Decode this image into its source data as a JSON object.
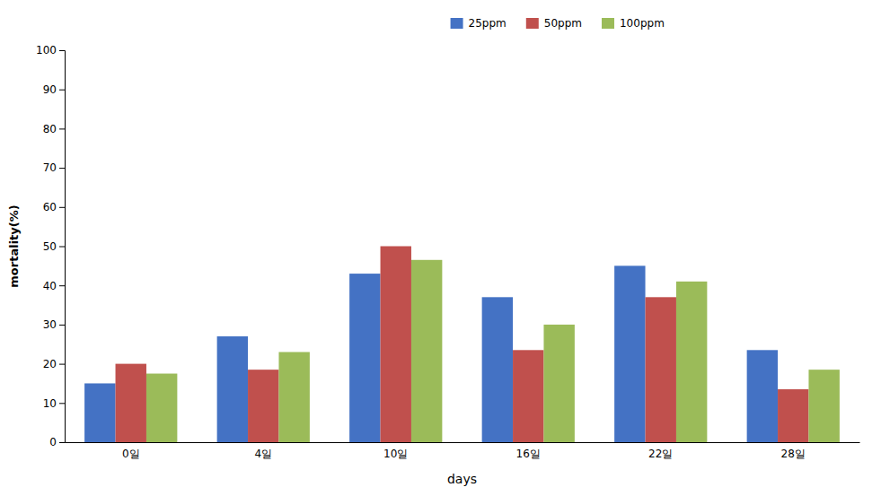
{
  "chart_data": {
    "type": "bar",
    "categories": [
      "0일",
      "4일",
      "10일",
      "16일",
      "22일",
      "28일"
    ],
    "series": [
      {
        "name": "25ppm",
        "color": "#4472C4",
        "values": [
          15,
          27,
          43,
          37,
          45,
          23.5
        ]
      },
      {
        "name": "50ppm",
        "color": "#C0504D",
        "values": [
          20,
          18.5,
          50,
          23.5,
          37,
          13.5
        ]
      },
      {
        "name": "100ppm",
        "color": "#9BBB59",
        "values": [
          17.5,
          23,
          46.5,
          30,
          41,
          18.5
        ]
      }
    ],
    "xlabel": "days",
    "ylabel": "mortality(%)",
    "ylim": [
      0,
      100
    ],
    "yticks": [
      0,
      10,
      20,
      30,
      40,
      50,
      60,
      70,
      80,
      90,
      100
    ],
    "grid": false,
    "legend": "top"
  }
}
